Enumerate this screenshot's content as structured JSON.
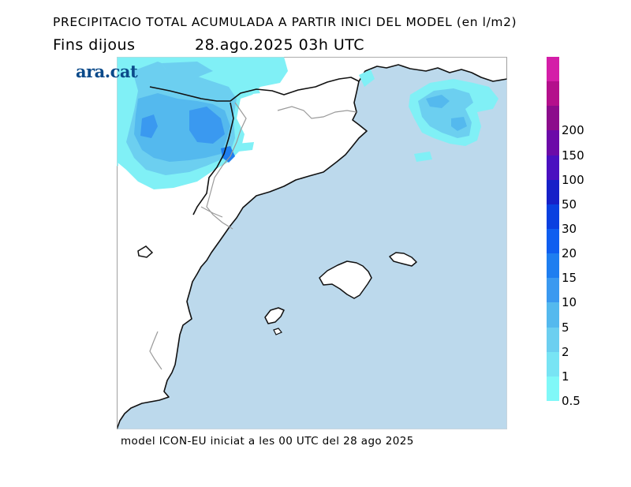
{
  "header": {
    "title": "PRECIPITACIO TOTAL ACUMULADA A PARTIR INICI DEL MODEL (en l/m2)",
    "period_label": "Fins dijous",
    "valid_time": "28.ago.2025 03h UTC"
  },
  "logo": {
    "text": "ara.cat"
  },
  "footer": {
    "model_info": "model ICON-EU iniciat a les 00 UTC del 28 ago 2025"
  },
  "map": {
    "sea_color": "#bcd9ec",
    "land_color": "#ffffff",
    "coast_color": "#111111",
    "border_color": "#9a9a9a"
  },
  "legend": {
    "colors": [
      "#80f8f8",
      "#78e4f4",
      "#6ccff0",
      "#54b9ee",
      "#3a99f0",
      "#1e7ef0",
      "#0f5ef0",
      "#0a40e0",
      "#1620c8",
      "#4a10c0",
      "#6c0aa8",
      "#8c0c8c",
      "#b4108c",
      "#d41ea8"
    ],
    "labels": [
      "0.5",
      "1",
      "2",
      "5",
      "10",
      "15",
      "20",
      "30",
      "50",
      "100",
      "150",
      "200"
    ]
  }
}
